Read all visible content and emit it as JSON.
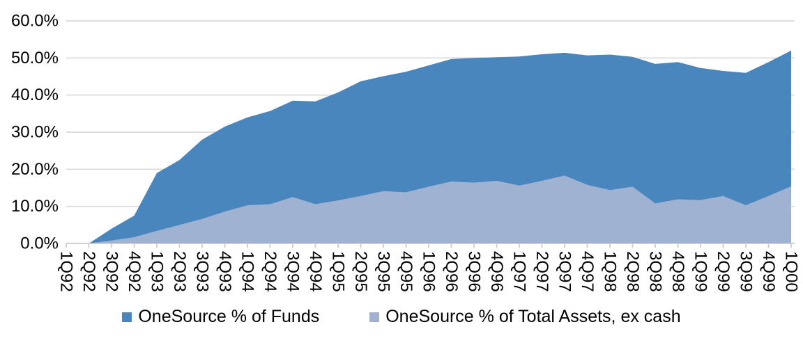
{
  "chart_data": {
    "type": "area",
    "title": "",
    "xlabel": "",
    "ylabel": "",
    "categories": [
      "1Q92",
      "2Q92",
      "3Q92",
      "4Q92",
      "1Q93",
      "2Q93",
      "3Q93",
      "4Q93",
      "1Q94",
      "2Q94",
      "3Q94",
      "4Q94",
      "1Q95",
      "2Q95",
      "3Q95",
      "4Q95",
      "1Q96",
      "2Q96",
      "3Q96",
      "4Q96",
      "1Q97",
      "2Q97",
      "3Q97",
      "4Q97",
      "1Q98",
      "2Q98",
      "3Q98",
      "4Q98",
      "1Q99",
      "2Q99",
      "3Q99",
      "4Q99",
      "1Q00"
    ],
    "series": [
      {
        "name": "OneSource % of Funds",
        "color": "#4A86BE",
        "values": [
          0.0,
          0.0,
          4.0,
          7.5,
          19.0,
          22.5,
          28.0,
          31.5,
          34.0,
          35.7,
          38.5,
          38.3,
          40.7,
          43.7,
          45.1,
          46.3,
          48.0,
          49.7,
          50.0,
          50.2,
          50.4,
          51.0,
          51.4,
          50.7,
          50.9,
          50.3,
          48.4,
          48.9,
          47.3,
          46.5,
          46.0,
          48.9,
          52.0
        ]
      },
      {
        "name": "OneSource % of Total Assets, ex cash",
        "color": "#9FB2D1",
        "values": [
          0.0,
          0.0,
          0.8,
          1.7,
          3.4,
          5.0,
          6.6,
          8.6,
          10.3,
          10.6,
          12.5,
          10.6,
          11.6,
          12.8,
          14.1,
          13.8,
          15.3,
          16.7,
          16.4,
          16.9,
          15.6,
          16.9,
          18.3,
          15.8,
          14.4,
          15.3,
          10.8,
          11.9,
          11.7,
          12.8,
          10.3,
          12.8,
          15.4
        ]
      }
    ],
    "ylim": [
      0,
      60
    ],
    "ytick_step": 10,
    "ytick_labels": [
      "0.0%",
      "10.0%",
      "20.0%",
      "30.0%",
      "40.0%",
      "50.0%",
      "60.0%"
    ],
    "x_label_rotation_deg": 90,
    "grid": "horizontal",
    "gridline_color": "#D9D9D9",
    "axis_color": "#C9C9C9",
    "text_color": "#000000",
    "background": "#FFFFFF",
    "legend_position": "bottom",
    "stacked": false
  }
}
